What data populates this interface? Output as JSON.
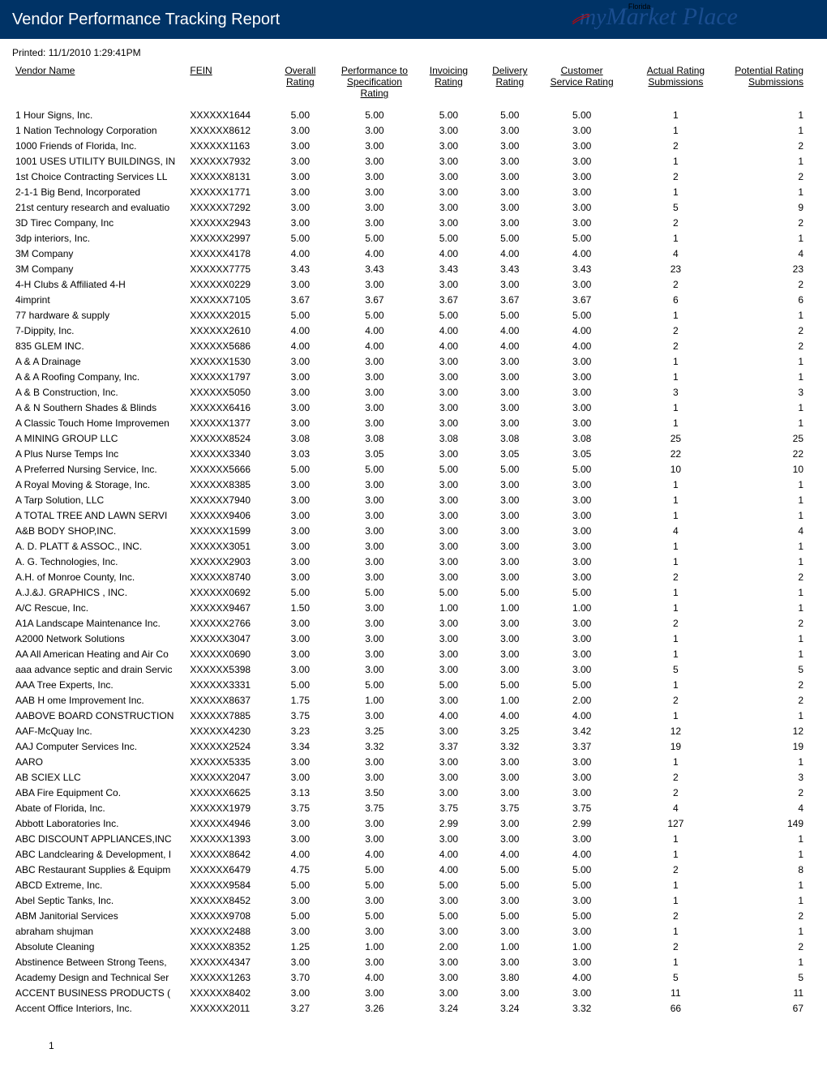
{
  "header": {
    "title": "Vendor Performance Tracking Report",
    "printed_label": "Printed:",
    "printed_value": "11/1/2010   1:29:41PM",
    "logo_my": "my",
    "logo_florida": "Florida",
    "logo_market": "Market Place"
  },
  "columns": [
    "Vendor Name",
    "FEIN",
    "Overall Rating",
    "Performance to Specification Rating",
    "Invoicing Rating",
    "Delivery Rating",
    "Customer Service Rating",
    "Actual Rating Submissions",
    "Potential Rating Submissions"
  ],
  "page_number": "1",
  "rows": [
    {
      "vendor": "1 Hour Signs, Inc.",
      "fein": "XXXXXX1644",
      "overall": "5.00",
      "perf": "5.00",
      "inv": "5.00",
      "del": "5.00",
      "cust": "5.00",
      "actual": "1",
      "pot": "1"
    },
    {
      "vendor": "1 Nation Technology Corporation",
      "fein": "XXXXXX8612",
      "overall": "3.00",
      "perf": "3.00",
      "inv": "3.00",
      "del": "3.00",
      "cust": "3.00",
      "actual": "1",
      "pot": "1"
    },
    {
      "vendor": "1000 Friends of Florida, Inc.",
      "fein": "XXXXXX1163",
      "overall": "3.00",
      "perf": "3.00",
      "inv": "3.00",
      "del": "3.00",
      "cust": "3.00",
      "actual": "2",
      "pot": "2"
    },
    {
      "vendor": "1001 USES UTILITY BUILDINGS, IN",
      "fein": "XXXXXX7932",
      "overall": "3.00",
      "perf": "3.00",
      "inv": "3.00",
      "del": "3.00",
      "cust": "3.00",
      "actual": "1",
      "pot": "1"
    },
    {
      "vendor": "1st Choice Contracting Services LL",
      "fein": "XXXXXX8131",
      "overall": "3.00",
      "perf": "3.00",
      "inv": "3.00",
      "del": "3.00",
      "cust": "3.00",
      "actual": "2",
      "pot": "2"
    },
    {
      "vendor": "2-1-1 Big Bend, Incorporated",
      "fein": "XXXXXX1771",
      "overall": "3.00",
      "perf": "3.00",
      "inv": "3.00",
      "del": "3.00",
      "cust": "3.00",
      "actual": "1",
      "pot": "1"
    },
    {
      "vendor": "21st century research and evaluatio",
      "fein": "XXXXXX7292",
      "overall": "3.00",
      "perf": "3.00",
      "inv": "3.00",
      "del": "3.00",
      "cust": "3.00",
      "actual": "5",
      "pot": "9"
    },
    {
      "vendor": "3D Tirec Company, Inc",
      "fein": "XXXXXX2943",
      "overall": "3.00",
      "perf": "3.00",
      "inv": "3.00",
      "del": "3.00",
      "cust": "3.00",
      "actual": "2",
      "pot": "2"
    },
    {
      "vendor": "3dp interiors, Inc.",
      "fein": "XXXXXX2997",
      "overall": "5.00",
      "perf": "5.00",
      "inv": "5.00",
      "del": "5.00",
      "cust": "5.00",
      "actual": "1",
      "pot": "1"
    },
    {
      "vendor": "3M Company",
      "fein": "XXXXXX4178",
      "overall": "4.00",
      "perf": "4.00",
      "inv": "4.00",
      "del": "4.00",
      "cust": "4.00",
      "actual": "4",
      "pot": "4"
    },
    {
      "vendor": "3M Company",
      "fein": "XXXXXX7775",
      "overall": "3.43",
      "perf": "3.43",
      "inv": "3.43",
      "del": "3.43",
      "cust": "3.43",
      "actual": "23",
      "pot": "23"
    },
    {
      "vendor": "4-H Clubs & Affiliated 4-H",
      "fein": "XXXXXX0229",
      "overall": "3.00",
      "perf": "3.00",
      "inv": "3.00",
      "del": "3.00",
      "cust": "3.00",
      "actual": "2",
      "pot": "2"
    },
    {
      "vendor": "4imprint",
      "fein": "XXXXXX7105",
      "overall": "3.67",
      "perf": "3.67",
      "inv": "3.67",
      "del": "3.67",
      "cust": "3.67",
      "actual": "6",
      "pot": "6"
    },
    {
      "vendor": "77 hardware & supply",
      "fein": "XXXXXX2015",
      "overall": "5.00",
      "perf": "5.00",
      "inv": "5.00",
      "del": "5.00",
      "cust": "5.00",
      "actual": "1",
      "pot": "1"
    },
    {
      "vendor": "7-Dippity, Inc.",
      "fein": "XXXXXX2610",
      "overall": "4.00",
      "perf": "4.00",
      "inv": "4.00",
      "del": "4.00",
      "cust": "4.00",
      "actual": "2",
      "pot": "2"
    },
    {
      "vendor": "835 GLEM INC.",
      "fein": "XXXXXX5686",
      "overall": "4.00",
      "perf": "4.00",
      "inv": "4.00",
      "del": "4.00",
      "cust": "4.00",
      "actual": "2",
      "pot": "2"
    },
    {
      "vendor": "A & A Drainage",
      "fein": "XXXXXX1530",
      "overall": "3.00",
      "perf": "3.00",
      "inv": "3.00",
      "del": "3.00",
      "cust": "3.00",
      "actual": "1",
      "pot": "1"
    },
    {
      "vendor": "A & A Roofing Company, Inc.",
      "fein": "XXXXXX1797",
      "overall": "3.00",
      "perf": "3.00",
      "inv": "3.00",
      "del": "3.00",
      "cust": "3.00",
      "actual": "1",
      "pot": "1"
    },
    {
      "vendor": "A & B Construction, Inc.",
      "fein": "XXXXXX5050",
      "overall": "3.00",
      "perf": "3.00",
      "inv": "3.00",
      "del": "3.00",
      "cust": "3.00",
      "actual": "3",
      "pot": "3"
    },
    {
      "vendor": "A & N Southern Shades & Blinds",
      "fein": "XXXXXX6416",
      "overall": "3.00",
      "perf": "3.00",
      "inv": "3.00",
      "del": "3.00",
      "cust": "3.00",
      "actual": "1",
      "pot": "1"
    },
    {
      "vendor": "A Classic Touch Home Improvemen",
      "fein": "XXXXXX1377",
      "overall": "3.00",
      "perf": "3.00",
      "inv": "3.00",
      "del": "3.00",
      "cust": "3.00",
      "actual": "1",
      "pot": "1"
    },
    {
      "vendor": "A MINING GROUP LLC",
      "fein": "XXXXXX8524",
      "overall": "3.08",
      "perf": "3.08",
      "inv": "3.08",
      "del": "3.08",
      "cust": "3.08",
      "actual": "25",
      "pot": "25"
    },
    {
      "vendor": "A Plus Nurse Temps Inc",
      "fein": "XXXXXX3340",
      "overall": "3.03",
      "perf": "3.05",
      "inv": "3.00",
      "del": "3.05",
      "cust": "3.05",
      "actual": "22",
      "pot": "22"
    },
    {
      "vendor": "A Preferred Nursing Service, Inc.",
      "fein": "XXXXXX5666",
      "overall": "5.00",
      "perf": "5.00",
      "inv": "5.00",
      "del": "5.00",
      "cust": "5.00",
      "actual": "10",
      "pot": "10"
    },
    {
      "vendor": "A Royal Moving & Storage, Inc.",
      "fein": "XXXXXX8385",
      "overall": "3.00",
      "perf": "3.00",
      "inv": "3.00",
      "del": "3.00",
      "cust": "3.00",
      "actual": "1",
      "pot": "1"
    },
    {
      "vendor": "A Tarp Solution, LLC",
      "fein": "XXXXXX7940",
      "overall": "3.00",
      "perf": "3.00",
      "inv": "3.00",
      "del": "3.00",
      "cust": "3.00",
      "actual": "1",
      "pot": "1"
    },
    {
      "vendor": "A TOTAL TREE AND LAWN SERVI",
      "fein": "XXXXXX9406",
      "overall": "3.00",
      "perf": "3.00",
      "inv": "3.00",
      "del": "3.00",
      "cust": "3.00",
      "actual": "1",
      "pot": "1"
    },
    {
      "vendor": "A&B BODY SHOP,INC.",
      "fein": "XXXXXX1599",
      "overall": "3.00",
      "perf": "3.00",
      "inv": "3.00",
      "del": "3.00",
      "cust": "3.00",
      "actual": "4",
      "pot": "4"
    },
    {
      "vendor": "A. D. PLATT & ASSOC., INC.",
      "fein": "XXXXXX3051",
      "overall": "3.00",
      "perf": "3.00",
      "inv": "3.00",
      "del": "3.00",
      "cust": "3.00",
      "actual": "1",
      "pot": "1"
    },
    {
      "vendor": "A. G. Technologies, Inc.",
      "fein": "XXXXXX2903",
      "overall": "3.00",
      "perf": "3.00",
      "inv": "3.00",
      "del": "3.00",
      "cust": "3.00",
      "actual": "1",
      "pot": "1"
    },
    {
      "vendor": "A.H. of Monroe County, Inc.",
      "fein": "XXXXXX8740",
      "overall": "3.00",
      "perf": "3.00",
      "inv": "3.00",
      "del": "3.00",
      "cust": "3.00",
      "actual": "2",
      "pot": "2"
    },
    {
      "vendor": "A.J.&J.  GRAPHICS , INC.",
      "fein": "XXXXXX0692",
      "overall": "5.00",
      "perf": "5.00",
      "inv": "5.00",
      "del": "5.00",
      "cust": "5.00",
      "actual": "1",
      "pot": "1"
    },
    {
      "vendor": "A/C Rescue, Inc.",
      "fein": "XXXXXX9467",
      "overall": "1.50",
      "perf": "3.00",
      "inv": "1.00",
      "del": "1.00",
      "cust": "1.00",
      "actual": "1",
      "pot": "1"
    },
    {
      "vendor": "A1A Landscape Maintenance Inc.",
      "fein": "XXXXXX2766",
      "overall": "3.00",
      "perf": "3.00",
      "inv": "3.00",
      "del": "3.00",
      "cust": "3.00",
      "actual": "2",
      "pot": "2"
    },
    {
      "vendor": "A2000 Network Solutions",
      "fein": "XXXXXX3047",
      "overall": "3.00",
      "perf": "3.00",
      "inv": "3.00",
      "del": "3.00",
      "cust": "3.00",
      "actual": "1",
      "pot": "1"
    },
    {
      "vendor": "AA All American Heating and Air Co",
      "fein": "XXXXXX0690",
      "overall": "3.00",
      "perf": "3.00",
      "inv": "3.00",
      "del": "3.00",
      "cust": "3.00",
      "actual": "1",
      "pot": "1"
    },
    {
      "vendor": "aaa advance septic and drain Servic",
      "fein": "XXXXXX5398",
      "overall": "3.00",
      "perf": "3.00",
      "inv": "3.00",
      "del": "3.00",
      "cust": "3.00",
      "actual": "5",
      "pot": "5"
    },
    {
      "vendor": "AAA Tree Experts, Inc.",
      "fein": "XXXXXX3331",
      "overall": "5.00",
      "perf": "5.00",
      "inv": "5.00",
      "del": "5.00",
      "cust": "5.00",
      "actual": "1",
      "pot": "2"
    },
    {
      "vendor": "AAB H ome Improvement Inc.",
      "fein": "XXXXXX8637",
      "overall": "1.75",
      "perf": "1.00",
      "inv": "3.00",
      "del": "1.00",
      "cust": "2.00",
      "actual": "2",
      "pot": "2"
    },
    {
      "vendor": "AABOVE BOARD CONSTRUCTION",
      "fein": "XXXXXX7885",
      "overall": "3.75",
      "perf": "3.00",
      "inv": "4.00",
      "del": "4.00",
      "cust": "4.00",
      "actual": "1",
      "pot": "1"
    },
    {
      "vendor": "AAF-McQuay Inc.",
      "fein": "XXXXXX4230",
      "overall": "3.23",
      "perf": "3.25",
      "inv": "3.00",
      "del": "3.25",
      "cust": "3.42",
      "actual": "12",
      "pot": "12"
    },
    {
      "vendor": "AAJ Computer Services Inc.",
      "fein": "XXXXXX2524",
      "overall": "3.34",
      "perf": "3.32",
      "inv": "3.37",
      "del": "3.32",
      "cust": "3.37",
      "actual": "19",
      "pot": "19"
    },
    {
      "vendor": "AARO",
      "fein": "XXXXXX5335",
      "overall": "3.00",
      "perf": "3.00",
      "inv": "3.00",
      "del": "3.00",
      "cust": "3.00",
      "actual": "1",
      "pot": "1"
    },
    {
      "vendor": "AB SCIEX LLC",
      "fein": "XXXXXX2047",
      "overall": "3.00",
      "perf": "3.00",
      "inv": "3.00",
      "del": "3.00",
      "cust": "3.00",
      "actual": "2",
      "pot": "3"
    },
    {
      "vendor": "ABA Fire Equipment Co.",
      "fein": "XXXXXX6625",
      "overall": "3.13",
      "perf": "3.50",
      "inv": "3.00",
      "del": "3.00",
      "cust": "3.00",
      "actual": "2",
      "pot": "2"
    },
    {
      "vendor": "Abate of Florida, Inc.",
      "fein": "XXXXXX1979",
      "overall": "3.75",
      "perf": "3.75",
      "inv": "3.75",
      "del": "3.75",
      "cust": "3.75",
      "actual": "4",
      "pot": "4"
    },
    {
      "vendor": "Abbott Laboratories Inc.",
      "fein": "XXXXXX4946",
      "overall": "3.00",
      "perf": "3.00",
      "inv": "2.99",
      "del": "3.00",
      "cust": "2.99",
      "actual": "127",
      "pot": "149"
    },
    {
      "vendor": "ABC DISCOUNT APPLIANCES,INC",
      "fein": "XXXXXX1393",
      "overall": "3.00",
      "perf": "3.00",
      "inv": "3.00",
      "del": "3.00",
      "cust": "3.00",
      "actual": "1",
      "pot": "1"
    },
    {
      "vendor": "ABC Landclearing & Development, I",
      "fein": "XXXXXX8642",
      "overall": "4.00",
      "perf": "4.00",
      "inv": "4.00",
      "del": "4.00",
      "cust": "4.00",
      "actual": "1",
      "pot": "1"
    },
    {
      "vendor": "ABC Restaurant Supplies & Equipm",
      "fein": "XXXXXX6479",
      "overall": "4.75",
      "perf": "5.00",
      "inv": "4.00",
      "del": "5.00",
      "cust": "5.00",
      "actual": "2",
      "pot": "8"
    },
    {
      "vendor": "ABCD Extreme, Inc.",
      "fein": "XXXXXX9584",
      "overall": "5.00",
      "perf": "5.00",
      "inv": "5.00",
      "del": "5.00",
      "cust": "5.00",
      "actual": "1",
      "pot": "1"
    },
    {
      "vendor": "Abel Septic Tanks, Inc.",
      "fein": "XXXXXX8452",
      "overall": "3.00",
      "perf": "3.00",
      "inv": "3.00",
      "del": "3.00",
      "cust": "3.00",
      "actual": "1",
      "pot": "1"
    },
    {
      "vendor": "ABM Janitorial Services",
      "fein": "XXXXXX9708",
      "overall": "5.00",
      "perf": "5.00",
      "inv": "5.00",
      "del": "5.00",
      "cust": "5.00",
      "actual": "2",
      "pot": "2"
    },
    {
      "vendor": "abraham shujman",
      "fein": "XXXXXX2488",
      "overall": "3.00",
      "perf": "3.00",
      "inv": "3.00",
      "del": "3.00",
      "cust": "3.00",
      "actual": "1",
      "pot": "1"
    },
    {
      "vendor": "Absolute Cleaning",
      "fein": "XXXXXX8352",
      "overall": "1.25",
      "perf": "1.00",
      "inv": "2.00",
      "del": "1.00",
      "cust": "1.00",
      "actual": "2",
      "pot": "2"
    },
    {
      "vendor": "Abstinence Between Strong Teens,",
      "fein": "XXXXXX4347",
      "overall": "3.00",
      "perf": "3.00",
      "inv": "3.00",
      "del": "3.00",
      "cust": "3.00",
      "actual": "1",
      "pot": "1"
    },
    {
      "vendor": "Academy Design and Technical Ser",
      "fein": "XXXXXX1263",
      "overall": "3.70",
      "perf": "4.00",
      "inv": "3.00",
      "del": "3.80",
      "cust": "4.00",
      "actual": "5",
      "pot": "5"
    },
    {
      "vendor": "ACCENT BUSINESS PRODUCTS (",
      "fein": "XXXXXX8402",
      "overall": "3.00",
      "perf": "3.00",
      "inv": "3.00",
      "del": "3.00",
      "cust": "3.00",
      "actual": "11",
      "pot": "11"
    },
    {
      "vendor": "Accent Office Interiors, Inc.",
      "fein": "XXXXXX2011",
      "overall": "3.27",
      "perf": "3.26",
      "inv": "3.24",
      "del": "3.24",
      "cust": "3.32",
      "actual": "66",
      "pot": "67"
    }
  ]
}
